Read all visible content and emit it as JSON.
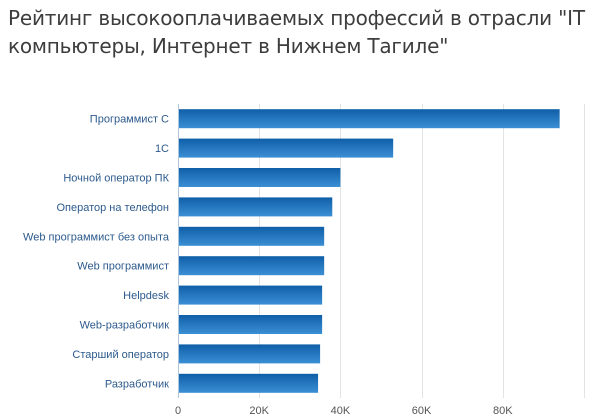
{
  "chart_data": {
    "type": "bar",
    "orientation": "horizontal",
    "title": "Рейтинг высокооплачиваемых профессий в отрасли \"IT компьютеры, Интернет в Нижнем Тагиле\"",
    "categories": [
      "Программист С",
      "1С",
      "Ночной оператор ПК",
      "Оператор на телефон",
      "Web программист без опыта",
      "Web программист",
      "Helpdesk",
      "Web-разработчик",
      "Старший оператор",
      "Разработчик"
    ],
    "values": [
      94000,
      53000,
      40000,
      38000,
      36000,
      36000,
      35500,
      35500,
      35000,
      34500
    ],
    "xlim": [
      0,
      100000
    ],
    "xticks": [
      0,
      20000,
      40000,
      60000,
      80000
    ],
    "xtick_labels": [
      "0",
      "20K",
      "40K",
      "60K",
      "80K"
    ],
    "xlabel": "",
    "ylabel": "",
    "grid": true,
    "colors": {
      "bar_top": "#0f5fa8",
      "bar_bottom": "#3b8fd4",
      "grid": "#e3e3e3",
      "axis": "#b0c4de"
    }
  }
}
